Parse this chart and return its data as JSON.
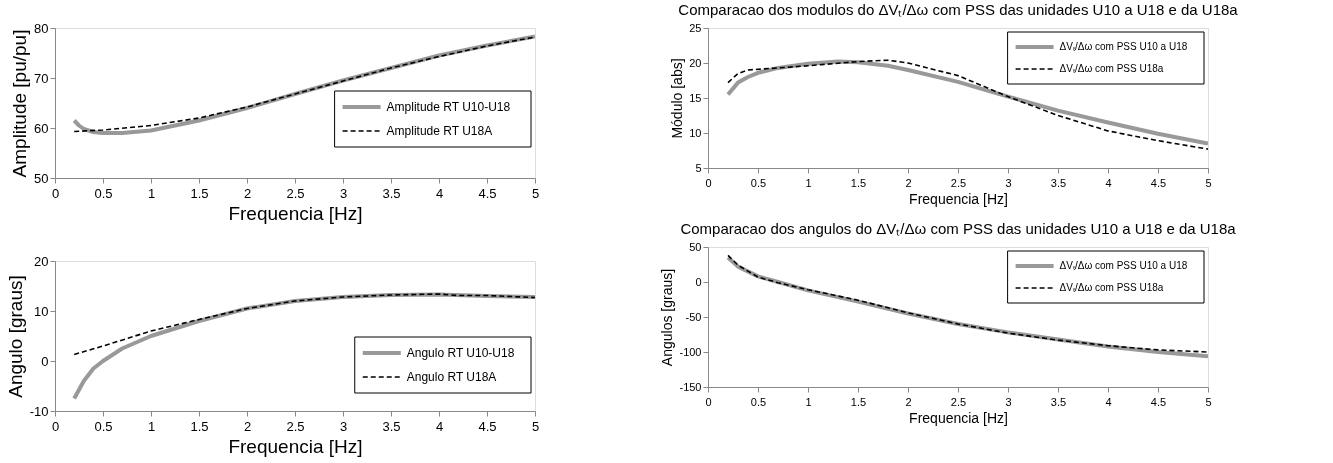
{
  "chart_data": [
    {
      "type": "line",
      "xlabel": "Frequencia [Hz]",
      "ylabel": "Amplitude [pu/pu]",
      "xlim": [
        0,
        5
      ],
      "xticks": [
        0,
        0.5,
        1,
        1.5,
        2,
        2.5,
        3,
        3.5,
        4,
        4.5,
        5
      ],
      "ylim": [
        50,
        80
      ],
      "yticks": [
        50,
        60,
        70,
        80
      ],
      "grid": false,
      "legend": "right",
      "series": [
        {
          "name": "Amplitude RT U10-U18",
          "color": "#999999",
          "line_style": "solid",
          "x": [
            0.2,
            0.25,
            0.3,
            0.4,
            0.5,
            0.7,
            1,
            1.5,
            2,
            2.5,
            3,
            3.5,
            4,
            4.5,
            5
          ],
          "values": [
            61.5,
            60.5,
            59.8,
            59.2,
            59,
            59,
            59.5,
            61.5,
            64,
            66.8,
            69.5,
            72,
            74.5,
            76.5,
            78.3
          ]
        },
        {
          "name": "Amplitude RT U18A",
          "color": "#000000",
          "line_style": "dashed",
          "x": [
            0.2,
            0.5,
            1,
            1.5,
            2,
            2.5,
            3,
            3.5,
            4,
            4.5,
            5
          ],
          "values": [
            59.3,
            59.6,
            60.5,
            62,
            64.2,
            66.8,
            69.4,
            72,
            74.3,
            76.4,
            78.2
          ]
        }
      ]
    },
    {
      "type": "line",
      "xlabel": "Frequencia [Hz]",
      "ylabel": "Angulo [graus]",
      "xlim": [
        0,
        5
      ],
      "xticks": [
        0,
        0.5,
        1,
        1.5,
        2,
        2.5,
        3,
        3.5,
        4,
        4.5,
        5
      ],
      "ylim": [
        -10,
        20
      ],
      "yticks": [
        -10,
        0,
        10,
        20
      ],
      "grid": false,
      "legend": "bottom right",
      "series": [
        {
          "name": "Angulo RT U10-U18",
          "color": "#999999",
          "line_style": "solid",
          "x": [
            0.2,
            0.3,
            0.4,
            0.5,
            0.7,
            1,
            1.5,
            2,
            2.5,
            3,
            3.5,
            4,
            4.5,
            5
          ],
          "values": [
            -7.5,
            -4,
            -1.5,
            0,
            2.5,
            5,
            8,
            10.5,
            12,
            12.8,
            13.2,
            13.3,
            13,
            12.8
          ]
        },
        {
          "name": "Angulo RT U18A",
          "color": "#000000",
          "line_style": "dashed",
          "x": [
            0.2,
            0.5,
            1,
            1.5,
            2,
            2.5,
            3,
            3.5,
            4,
            4.2,
            4.5,
            5
          ],
          "values": [
            1.3,
            3,
            6,
            8.3,
            10.5,
            12,
            12.8,
            13.2,
            13.4,
            13.1,
            13.1,
            12.7
          ]
        }
      ]
    },
    {
      "type": "line",
      "title": "Comparacao dos modulos do ΔVₜ/Δω com PSS das unidades U10 a U18 e da U18a",
      "xlabel": "Frequencia [Hz]",
      "ylabel": "Módulo [abs]",
      "xlim": [
        0,
        5
      ],
      "xticks": [
        0,
        0.5,
        1,
        1.5,
        2,
        2.5,
        3,
        3.5,
        4,
        4.5,
        5
      ],
      "ylim": [
        5,
        25
      ],
      "yticks": [
        5,
        10,
        15,
        20,
        25
      ],
      "grid": false,
      "legend": "top right",
      "series": [
        {
          "name": "ΔVₜ/Δω com PSS U10 a U18",
          "color": "#999999",
          "line_style": "solid",
          "x": [
            0.2,
            0.3,
            0.4,
            0.5,
            0.7,
            1,
            1.3,
            1.5,
            1.8,
            2,
            2.5,
            3,
            3.5,
            4,
            4.5,
            5
          ],
          "values": [
            15.5,
            17.2,
            18,
            18.6,
            19.3,
            19.9,
            20.2,
            20.1,
            19.6,
            19,
            17.3,
            15.2,
            13.2,
            11.5,
            9.9,
            8.5
          ]
        },
        {
          "name": "ΔVₜ/Δω com PSS U18a",
          "color": "#000000",
          "line_style": "dashed",
          "x": [
            0.2,
            0.3,
            0.4,
            0.5,
            0.7,
            1,
            1.5,
            1.8,
            2,
            2.5,
            3,
            3.5,
            4,
            4.5,
            5
          ],
          "values": [
            17.2,
            18.5,
            19,
            19.1,
            19.3,
            19.6,
            20.2,
            20.4,
            20,
            18.2,
            15.2,
            12.5,
            10.3,
            8.9,
            7.7
          ]
        }
      ]
    },
    {
      "type": "line",
      "title": "Comparacao dos angulos do ΔVₜ/Δω com PSS das unidades U10 a U18 e da U18a",
      "xlabel": "Frequencia [Hz]",
      "ylabel": "Angulos [graus]",
      "xlim": [
        0,
        5
      ],
      "xticks": [
        0,
        0.5,
        1,
        1.5,
        2,
        2.5,
        3,
        3.5,
        4,
        4.5,
        5
      ],
      "ylim": [
        -150,
        50
      ],
      "yticks": [
        -150,
        -100,
        -50,
        0,
        50
      ],
      "grid": false,
      "legend": "top right",
      "series": [
        {
          "name": "ΔVₜ/Δω com PSS U10 a U18",
          "color": "#999999",
          "line_style": "solid",
          "x": [
            0.2,
            0.3,
            0.5,
            0.7,
            1,
            1.5,
            2,
            2.5,
            3,
            3.5,
            4,
            4.5,
            5
          ],
          "values": [
            35,
            22,
            8,
            0,
            -12,
            -28,
            -45,
            -60,
            -72,
            -82,
            -92,
            -100,
            -106
          ]
        },
        {
          "name": "ΔVₜ/Δω com PSS  U18a",
          "color": "#000000",
          "line_style": "dashed",
          "x": [
            0.2,
            0.3,
            0.5,
            0.7,
            1,
            1.5,
            2,
            2.5,
            3,
            3.5,
            4,
            4.5,
            5
          ],
          "values": [
            38,
            24,
            7,
            -1,
            -11,
            -26,
            -44,
            -60,
            -73,
            -83,
            -91,
            -97,
            -100
          ]
        }
      ]
    }
  ]
}
